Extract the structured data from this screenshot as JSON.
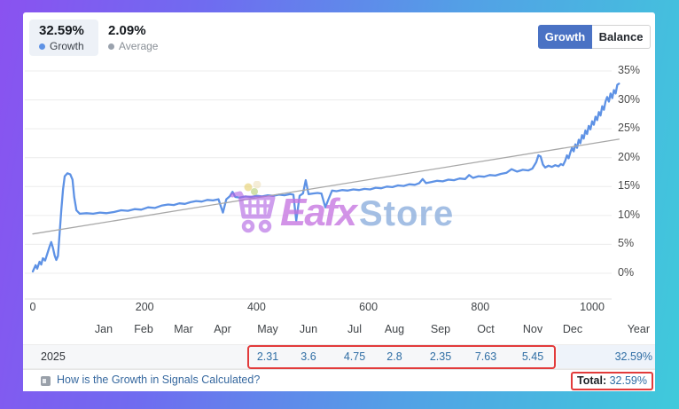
{
  "header": {
    "growth_stat": {
      "value": "32.59%",
      "label": "Growth",
      "dot_color": "#5e92e5"
    },
    "average_stat": {
      "value": "2.09%",
      "label": "Average",
      "dot_color": "#9aa2ad"
    },
    "toggle": {
      "growth_label": "Growth",
      "balance_label": "Balance",
      "active": "Growth",
      "active_color": "#4a72c4"
    }
  },
  "chart_data": {
    "type": "line",
    "title": "Signal growth curve",
    "grid": "horizontal",
    "legend_position": "none",
    "ylim": [
      0,
      35
    ],
    "xlim": [
      0,
      1050
    ],
    "y_ticks": [
      {
        "pct": 0,
        "label": "0%"
      },
      {
        "pct": 5,
        "label": "5%"
      },
      {
        "pct": 10,
        "label": "10%"
      },
      {
        "pct": 15,
        "label": "15%"
      },
      {
        "pct": 20,
        "label": "20%"
      },
      {
        "pct": 25,
        "label": "25%"
      },
      {
        "pct": 30,
        "label": "30%"
      },
      {
        "pct": 35,
        "label": "35%"
      }
    ],
    "x_ticks": [
      0,
      200,
      400,
      600,
      800,
      1000
    ],
    "series": [
      {
        "name": "Growth",
        "color": "#5e92e5",
        "width": 2.3,
        "points": [
          [
            0,
            0.3
          ],
          [
            5,
            1.4
          ],
          [
            8,
            0.8
          ],
          [
            12,
            2.0
          ],
          [
            15,
            1.5
          ],
          [
            18,
            2.6
          ],
          [
            22,
            2.2
          ],
          [
            26,
            3.4
          ],
          [
            30,
            4.6
          ],
          [
            33,
            5.4
          ],
          [
            36,
            4.4
          ],
          [
            39,
            3.1
          ],
          [
            42,
            2.3
          ],
          [
            45,
            3.0
          ],
          [
            48,
            7.0
          ],
          [
            51,
            11.0
          ],
          [
            54,
            14.5
          ],
          [
            57,
            16.8
          ],
          [
            62,
            17.3
          ],
          [
            67,
            17.1
          ],
          [
            71,
            16.2
          ],
          [
            74,
            13.2
          ],
          [
            78,
            10.9
          ],
          [
            84,
            10.3
          ],
          [
            96,
            10.4
          ],
          [
            108,
            10.3
          ],
          [
            120,
            10.5
          ],
          [
            132,
            10.4
          ],
          [
            145,
            10.6
          ],
          [
            158,
            10.9
          ],
          [
            170,
            10.8
          ],
          [
            182,
            11.1
          ],
          [
            194,
            11.0
          ],
          [
            206,
            11.4
          ],
          [
            218,
            11.3
          ],
          [
            230,
            11.7
          ],
          [
            242,
            11.9
          ],
          [
            252,
            11.8
          ],
          [
            262,
            12.1
          ],
          [
            272,
            12.0
          ],
          [
            282,
            12.3
          ],
          [
            292,
            12.5
          ],
          [
            302,
            12.4
          ],
          [
            312,
            12.7
          ],
          [
            322,
            12.6
          ],
          [
            332,
            12.8
          ],
          [
            340,
            10.5
          ],
          [
            346,
            12.8
          ],
          [
            352,
            13.3
          ],
          [
            357,
            14.1
          ],
          [
            362,
            13.2
          ],
          [
            370,
            13.1
          ],
          [
            380,
            13.3
          ],
          [
            390,
            13.2
          ],
          [
            400,
            13.4
          ],
          [
            410,
            13.3
          ],
          [
            420,
            13.5
          ],
          [
            430,
            13.4
          ],
          [
            440,
            13.6
          ],
          [
            450,
            13.5
          ],
          [
            460,
            13.7
          ],
          [
            466,
            13.6
          ],
          [
            471,
            9.1
          ],
          [
            477,
            13.4
          ],
          [
            483,
            13.8
          ],
          [
            488,
            16.1
          ],
          [
            493,
            13.7
          ],
          [
            501,
            13.8
          ],
          [
            509,
            13.9
          ],
          [
            516,
            13.8
          ],
          [
            523,
            11.4
          ],
          [
            529,
            12.9
          ],
          [
            535,
            14.3
          ],
          [
            543,
            14.2
          ],
          [
            553,
            14.4
          ],
          [
            563,
            14.3
          ],
          [
            573,
            14.5
          ],
          [
            583,
            14.4
          ],
          [
            593,
            14.6
          ],
          [
            603,
            14.5
          ],
          [
            613,
            14.8
          ],
          [
            623,
            14.7
          ],
          [
            633,
            15.0
          ],
          [
            643,
            14.9
          ],
          [
            653,
            15.2
          ],
          [
            663,
            15.1
          ],
          [
            673,
            15.4
          ],
          [
            683,
            15.3
          ],
          [
            691,
            15.6
          ],
          [
            697,
            16.3
          ],
          [
            703,
            15.6
          ],
          [
            713,
            15.8
          ],
          [
            723,
            16.0
          ],
          [
            733,
            15.9
          ],
          [
            743,
            16.2
          ],
          [
            753,
            16.1
          ],
          [
            763,
            16.4
          ],
          [
            773,
            16.3
          ],
          [
            780,
            17.0
          ],
          [
            787,
            16.5
          ],
          [
            797,
            16.8
          ],
          [
            807,
            16.7
          ],
          [
            817,
            17.0
          ],
          [
            827,
            16.9
          ],
          [
            837,
            17.2
          ],
          [
            847,
            17.4
          ],
          [
            856,
            18.0
          ],
          [
            866,
            17.6
          ],
          [
            876,
            17.9
          ],
          [
            886,
            17.8
          ],
          [
            893,
            18.1
          ],
          [
            900,
            19.2
          ],
          [
            904,
            20.4
          ],
          [
            908,
            20.2
          ],
          [
            912,
            18.8
          ],
          [
            916,
            18.3
          ],
          [
            922,
            18.6
          ],
          [
            928,
            18.4
          ],
          [
            934,
            18.7
          ],
          [
            940,
            18.5
          ],
          [
            944,
            18.9
          ],
          [
            948,
            18.7
          ],
          [
            952,
            19.5
          ],
          [
            955,
            20.4
          ],
          [
            958,
            19.9
          ],
          [
            961,
            20.9
          ],
          [
            964,
            21.7
          ],
          [
            967,
            21.1
          ],
          [
            970,
            22.3
          ],
          [
            973,
            21.7
          ],
          [
            976,
            23.1
          ],
          [
            979,
            22.5
          ],
          [
            982,
            23.9
          ],
          [
            985,
            23.3
          ],
          [
            988,
            24.7
          ],
          [
            991,
            24.1
          ],
          [
            994,
            25.5
          ],
          [
            997,
            24.9
          ],
          [
            1000,
            26.3
          ],
          [
            1003,
            25.7
          ],
          [
            1006,
            27.1
          ],
          [
            1009,
            26.5
          ],
          [
            1012,
            27.9
          ],
          [
            1015,
            27.3
          ],
          [
            1018,
            28.9
          ],
          [
            1021,
            28.3
          ],
          [
            1024,
            29.7
          ],
          [
            1027,
            30.5
          ],
          [
            1030,
            29.7
          ],
          [
            1033,
            31.1
          ],
          [
            1036,
            30.3
          ],
          [
            1039,
            31.7
          ],
          [
            1042,
            31.1
          ],
          [
            1045,
            32.6
          ],
          [
            1048,
            32.8
          ]
        ]
      },
      {
        "name": "Trend",
        "color": "#a8a8a8",
        "width": 1.3,
        "points": [
          [
            0,
            6.8
          ],
          [
            1048,
            23.2
          ]
        ]
      }
    ]
  },
  "months_row": {
    "months": [
      "Jan",
      "Feb",
      "Mar",
      "Apr",
      "May",
      "Jun",
      "Jul",
      "Aug",
      "Sep",
      "Oct",
      "Nov",
      "Dec"
    ],
    "year_label": "Year"
  },
  "table": {
    "year": "2025",
    "monthly_values": [
      {
        "month": "May",
        "value": "2.31"
      },
      {
        "month": "Jun",
        "value": "3.6"
      },
      {
        "month": "Jul",
        "value": "4.75"
      },
      {
        "month": "Aug",
        "value": "2.8"
      },
      {
        "month": "Sep",
        "value": "2.35"
      },
      {
        "month": "Oct",
        "value": "7.63"
      },
      {
        "month": "Nov",
        "value": "5.45"
      }
    ],
    "year_total": "32.59%",
    "highlight_color": "#e23b3b"
  },
  "footer": {
    "link_text": "How is the Growth in Signals Calculated?",
    "total_label": "Total:",
    "total_value": "32.59%"
  },
  "watermark": {
    "text_primary": "Eafx",
    "text_secondary": "Store",
    "cart_color": "#b163e3"
  }
}
